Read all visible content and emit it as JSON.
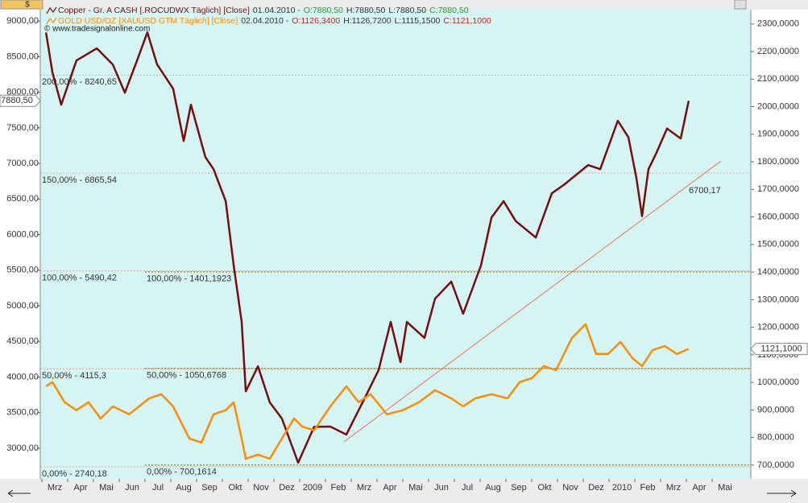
{
  "chart_data": {
    "type": "line",
    "currency": "$",
    "watermark": "© www.tradesignalonline.com",
    "xlim": [
      -0.5625,
      27
    ],
    "xticks": [
      {
        "value": 0,
        "label": "Mrz"
      },
      {
        "value": 1,
        "label": "Apr"
      },
      {
        "value": 2,
        "label": "Mai"
      },
      {
        "value": 3,
        "label": "Jun"
      },
      {
        "value": 4,
        "label": "Jul"
      },
      {
        "value": 5,
        "label": "Aug"
      },
      {
        "value": 6,
        "label": "Sep"
      },
      {
        "value": 7,
        "label": "Okt"
      },
      {
        "value": 8,
        "label": "Nov"
      },
      {
        "value": 9,
        "label": "Dez"
      },
      {
        "value": 10,
        "label": "2009"
      },
      {
        "value": 11,
        "label": "Feb"
      },
      {
        "value": 12,
        "label": "Mrz"
      },
      {
        "value": 13,
        "label": "Apr"
      },
      {
        "value": 14,
        "label": "Mai"
      },
      {
        "value": 15,
        "label": "Jun"
      },
      {
        "value": 16,
        "label": "Jul"
      },
      {
        "value": 17,
        "label": "Aug"
      },
      {
        "value": 18,
        "label": "Sep"
      },
      {
        "value": 19,
        "label": "Okt"
      },
      {
        "value": 20,
        "label": "Nov"
      },
      {
        "value": 21,
        "label": "Dez"
      },
      {
        "value": 22,
        "label": "2010"
      },
      {
        "value": 23,
        "label": "Feb"
      },
      {
        "value": 24,
        "label": "Mrz"
      },
      {
        "value": 25,
        "label": "Apr"
      },
      {
        "value": 26,
        "label": "Mai"
      }
    ],
    "ylim": [
      2570,
      9160
    ],
    "yticks": [
      {
        "value": 3000,
        "label": "3000,00"
      },
      {
        "value": 3500,
        "label": "3500,00"
      },
      {
        "value": 4000,
        "label": "4000,00"
      },
      {
        "value": 4500,
        "label": "4500,00"
      },
      {
        "value": 5000,
        "label": "5000,00"
      },
      {
        "value": 5500,
        "label": "5500,00"
      },
      {
        "value": 6000,
        "label": "6000,00"
      },
      {
        "value": 6500,
        "label": "6500,00"
      },
      {
        "value": 7000,
        "label": "7000,00"
      },
      {
        "value": 7500,
        "label": "7500,00"
      },
      {
        "value": 8000,
        "label": "8000,00"
      },
      {
        "value": 8500,
        "label": "8500,00"
      },
      {
        "value": 9000,
        "label": "9000,00"
      }
    ],
    "y2lim": [
      650,
      2352
    ],
    "y2ticks": [
      {
        "value": 700,
        "label": "700,0000"
      },
      {
        "value": 800,
        "label": "800,0000"
      },
      {
        "value": 900,
        "label": "900,0000"
      },
      {
        "value": 1000,
        "label": "1000,0000"
      },
      {
        "value": 1100,
        "label": "1100,0000"
      },
      {
        "value": 1200,
        "label": "1200,0000"
      },
      {
        "value": 1300,
        "label": "1300,0000"
      },
      {
        "value": 1400,
        "label": "1400,0000"
      },
      {
        "value": 1500,
        "label": "1500,0000"
      },
      {
        "value": 1600,
        "label": "1600,0000"
      },
      {
        "value": 1700,
        "label": "1700,0000"
      },
      {
        "value": 1800,
        "label": "1800,0000"
      },
      {
        "value": 1900,
        "label": "1900,0000"
      },
      {
        "value": 2000,
        "label": "2000,0000"
      },
      {
        "value": 2100,
        "label": "2100,0000"
      },
      {
        "value": 2200,
        "label": "2200,0000"
      },
      {
        "value": 2300,
        "label": "2300,0000"
      }
    ],
    "series": [
      {
        "name": "Copper - Gr. A CASH [.ROCUDWX  Täglich] [Close]",
        "color": "#7a0c0c",
        "axis": "y",
        "info": [
          {
            "text": "01.04.2010 -",
            "color": "#333333"
          },
          {
            "text": "O:7880,50",
            "color": "#2a9a2a"
          },
          {
            "text": "H:7880,50",
            "color": "#333333"
          },
          {
            "text": "L:7880,50",
            "color": "#333333"
          },
          {
            "text": "C:7880,50",
            "color": "#2a9a2a"
          }
        ],
        "tag": "7880,50",
        "x": [
          -0.34,
          -0.09,
          0.25,
          0.84,
          1.63,
          2.25,
          2.72,
          3.19,
          3.59,
          3.97,
          4.59,
          5.0,
          5.28,
          5.84,
          6.16,
          6.63,
          6.94,
          7.25,
          7.41,
          7.88,
          8.34,
          8.81,
          9.44,
          10.06,
          10.69,
          11.31,
          11.94,
          12.56,
          13.03,
          13.41,
          13.66,
          14.34,
          14.75,
          15.38,
          15.84,
          16.53,
          16.94,
          17.41,
          17.88,
          18.66,
          19.28,
          19.75,
          20.69,
          21.16,
          21.84,
          22.25,
          22.56,
          22.78,
          23.03,
          23.34,
          23.75,
          24.28,
          24.59
        ],
        "values": [
          8840,
          8277,
          7825,
          8446,
          8616,
          8390,
          7994,
          8446,
          8840,
          8390,
          8050,
          7316,
          7825,
          7090,
          6920,
          6470,
          5565,
          4774,
          3800,
          4150,
          3644,
          3418,
          2797,
          3300,
          3305,
          3192,
          3644,
          4096,
          4774,
          4209,
          4774,
          4550,
          5100,
          5340,
          4890,
          5565,
          6240,
          6470,
          6190,
          5960,
          6580,
          6700,
          6977,
          6920,
          7600,
          7370,
          6800,
          6260,
          6920,
          7150,
          7490,
          7350,
          7880.5
        ]
      },
      {
        "name": "GOLD USD/OZ [XAUUSD GTM  Täglich] [Close]",
        "color": "#ff8c00",
        "axis": "y2",
        "info": [
          {
            "text": "02.04.2010 -",
            "color": "#333333"
          },
          {
            "text": "O:1126,3400",
            "color": "#d42020"
          },
          {
            "text": "H:1126,7200",
            "color": "#333333"
          },
          {
            "text": "L:1115,1500",
            "color": "#333333"
          },
          {
            "text": "C:1121,1000",
            "color": "#d42020"
          }
        ],
        "tag": "1121,1000",
        "x": [
          -0.34,
          -0.09,
          0.38,
          0.84,
          1.31,
          1.78,
          2.25,
          2.88,
          3.66,
          4.13,
          4.59,
          5.22,
          5.69,
          6.16,
          6.63,
          6.94,
          7.25,
          7.41,
          7.88,
          8.34,
          8.81,
          9.28,
          9.59,
          10.06,
          10.69,
          11.31,
          11.78,
          12.25,
          12.88,
          13.5,
          14.13,
          14.75,
          15.38,
          15.84,
          16.31,
          16.94,
          17.56,
          18.03,
          18.5,
          18.97,
          19.44,
          20.06,
          20.59,
          21.0,
          21.47,
          21.94,
          22.41,
          22.78,
          23.19,
          23.66,
          24.13,
          24.59
        ],
        "values": [
          986,
          1001,
          928,
          899,
          928,
          869,
          913,
          884,
          942,
          957,
          913,
          796,
          782,
          884,
          899,
          928,
          796,
          723,
          738,
          723,
          796,
          869,
          840,
          826,
          913,
          986,
          928,
          957,
          884,
          899,
          928,
          972,
          942,
          913,
          942,
          957,
          942,
          1001,
          1015,
          1059,
          1044,
          1161,
          1211,
          1103,
          1103,
          1147,
          1088,
          1059,
          1117,
          1132,
          1103,
          1121.1
        ]
      }
    ],
    "levels": [
      {
        "value": 8240.65,
        "label": "200,00% - 8240,65",
        "axis": "y",
        "color": "#e8a090"
      },
      {
        "value": 6865.54,
        "label": "150,00% - 6865,54",
        "axis": "y",
        "color": "#e8a090"
      },
      {
        "value": 5490.42,
        "label": "100,00% - 5490,42",
        "axis": "y",
        "color": "#e8a090"
      },
      {
        "value": 4115.3,
        "label": "50,00% - 4115,3",
        "axis": "y",
        "color": "#e8a090"
      },
      {
        "value": 2740.18,
        "label": "0,00% - 2740,18",
        "axis": "y",
        "color": "#e8a090"
      },
      {
        "value": 1401.1923,
        "label": "100,00% - 1401,1923",
        "axis": "y2",
        "color": "#8fa818"
      },
      {
        "value": 1050.6768,
        "label": "50,00% - 1050,6768",
        "axis": "y2",
        "color": "#8fa818"
      },
      {
        "value": 700.1614,
        "label": "0,00% - 700,1614",
        "axis": "y2",
        "color": "#8fa818"
      }
    ],
    "trendline": {
      "x": [
        11.22,
        25.84
      ],
      "values": [
        3090,
        7034
      ],
      "label": "6700,17",
      "color": "#f07050"
    }
  }
}
